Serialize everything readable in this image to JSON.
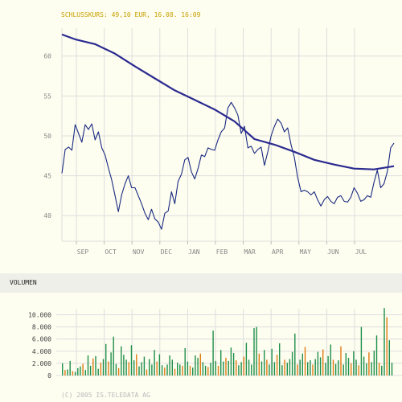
{
  "header": {
    "close_label": "SCHLUSSKURS: 49,10 EUR, 16.08. 16:09"
  },
  "volume_section": {
    "title": "VOLUMEN"
  },
  "footer": {
    "copyright": "(C) 2005 IS.TELEDATA AG"
  },
  "colors": {
    "background": "#fdfdf0",
    "header_text": "#c8a000",
    "grid": "#dedede",
    "axis_text": "#888888",
    "price_line": "#1a2a80",
    "moving_average": "#2a2a90",
    "volume_green": "#1e8f4a",
    "volume_orange": "#e07a10"
  },
  "chart_data": [
    {
      "type": "line",
      "title": "",
      "x_categories": [
        "SEP",
        "OCT",
        "NOV",
        "DEC",
        "JAN",
        "FEB",
        "MAR",
        "APR",
        "MAY",
        "JUN",
        "JUL"
      ],
      "y_ticks": [
        "60",
        "55",
        "50",
        "45",
        "40"
      ],
      "y_tick_values": [
        60,
        55,
        50,
        45,
        40
      ],
      "ylim": [
        36.8,
        63.5
      ],
      "grid": true,
      "series": [
        {
          "kind": "price",
          "points": [
            [
              0,
              45.3
            ],
            [
              0.5,
              48.3
            ],
            [
              1,
              48.6
            ],
            [
              1.5,
              48.2
            ],
            [
              2,
              51.4
            ],
            [
              2.5,
              50.3
            ],
            [
              3,
              49.2
            ],
            [
              3.5,
              51.4
            ],
            [
              4,
              50.8
            ],
            [
              4.5,
              51.5
            ],
            [
              5,
              49.5
            ],
            [
              5.5,
              50.5
            ],
            [
              6,
              48.5
            ],
            [
              6.5,
              47.6
            ],
            [
              7,
              46.0
            ],
            [
              7.5,
              44.5
            ],
            [
              8,
              42.5
            ],
            [
              8.5,
              40.5
            ],
            [
              9,
              42.6
            ],
            [
              9.5,
              44.0
            ],
            [
              10,
              45.0
            ],
            [
              10.5,
              43.5
            ],
            [
              11,
              43.5
            ],
            [
              11.5,
              42.5
            ],
            [
              12,
              41.5
            ],
            [
              12.5,
              40.3
            ],
            [
              13,
              39.5
            ],
            [
              13.5,
              40.8
            ],
            [
              14,
              39.6
            ],
            [
              14.5,
              39.2
            ],
            [
              15,
              38.3
            ],
            [
              15.5,
              40.3
            ],
            [
              16,
              40.6
            ],
            [
              16.5,
              43.0
            ],
            [
              17,
              41.5
            ],
            [
              17.5,
              44.3
            ],
            [
              18,
              45.2
            ],
            [
              18.5,
              47.0
            ],
            [
              19,
              47.3
            ],
            [
              19.5,
              45.5
            ],
            [
              20,
              44.6
            ],
            [
              20.5,
              45.9
            ],
            [
              21,
              47.6
            ],
            [
              21.5,
              47.4
            ],
            [
              22,
              48.5
            ],
            [
              22.5,
              48.3
            ],
            [
              23,
              48.2
            ],
            [
              23.5,
              49.5
            ],
            [
              24,
              50.5
            ],
            [
              24.5,
              51.0
            ],
            [
              25,
              53.5
            ],
            [
              25.5,
              54.2
            ],
            [
              26,
              53.5
            ],
            [
              26.5,
              52.6
            ],
            [
              27,
              50.3
            ],
            [
              27.5,
              51.2
            ],
            [
              28,
              48.5
            ],
            [
              28.5,
              48.7
            ],
            [
              29,
              47.8
            ],
            [
              29.5,
              48.3
            ],
            [
              30,
              48.6
            ],
            [
              30.5,
              46.3
            ],
            [
              31,
              48.0
            ],
            [
              31.5,
              50.0
            ],
            [
              32,
              51.2
            ],
            [
              32.5,
              52.1
            ],
            [
              33,
              51.6
            ],
            [
              33.5,
              50.5
            ],
            [
              34,
              51.0
            ],
            [
              34.5,
              48.9
            ],
            [
              35,
              47.3
            ],
            [
              35.5,
              44.8
            ],
            [
              36,
              43.0
            ],
            [
              36.5,
              43.2
            ],
            [
              37,
              43.0
            ],
            [
              37.5,
              42.6
            ],
            [
              38,
              43.0
            ],
            [
              38.5,
              42.0
            ],
            [
              39,
              41.2
            ],
            [
              39.5,
              42.0
            ],
            [
              40,
              42.4
            ],
            [
              40.5,
              41.8
            ],
            [
              41,
              41.5
            ],
            [
              41.5,
              42.3
            ],
            [
              42,
              42.5
            ],
            [
              42.5,
              41.8
            ],
            [
              43,
              41.7
            ],
            [
              43.5,
              42.3
            ],
            [
              44,
              43.5
            ],
            [
              44.5,
              42.8
            ],
            [
              45,
              41.8
            ],
            [
              45.5,
              42.0
            ],
            [
              46,
              42.5
            ],
            [
              46.5,
              42.3
            ],
            [
              47,
              44.2
            ],
            [
              47.5,
              45.7
            ],
            [
              48,
              43.5
            ],
            [
              48.5,
              44.0
            ],
            [
              49,
              45.5
            ],
            [
              49.5,
              48.5
            ],
            [
              50,
              49.1
            ]
          ]
        },
        {
          "kind": "moving_average",
          "points": [
            [
              0,
              62.7
            ],
            [
              2,
              62.1
            ],
            [
              5,
              61.5
            ],
            [
              8,
              60.3
            ],
            [
              11,
              58.7
            ],
            [
              14,
              57.2
            ],
            [
              17,
              55.7
            ],
            [
              20,
              54.5
            ],
            [
              23,
              53.3
            ],
            [
              26,
              51.8
            ],
            [
              29,
              49.6
            ],
            [
              32,
              48.9
            ],
            [
              35,
              48.0
            ],
            [
              38,
              47.0
            ],
            [
              41,
              46.4
            ],
            [
              44,
              45.9
            ],
            [
              47,
              45.8
            ],
            [
              50,
              46.2
            ]
          ]
        }
      ]
    },
    {
      "type": "bar",
      "title": "VOLUMEN",
      "y_ticks": [
        "10.000",
        "8.000",
        "6.000",
        "4.000",
        "2.000",
        "0"
      ],
      "y_tick_values": [
        10000,
        8000,
        6000,
        4000,
        2000,
        0
      ],
      "ylim": [
        0,
        11000
      ],
      "grid": true,
      "series": [
        {
          "name": "",
          "values": [
            2000,
            900,
            1000,
            2400,
            700,
            600,
            1200,
            1500,
            1900,
            900,
            3300,
            1600,
            2800,
            3200,
            1100,
            2100,
            2700,
            5200,
            2300,
            3800,
            6400,
            1900,
            1200,
            4800,
            3400,
            2600,
            2200,
            5000,
            2500,
            3500,
            1500,
            2200,
            3100,
            1000,
            2700,
            1800,
            4200,
            2300,
            3500,
            1700,
            1300,
            1800,
            3300,
            2600,
            1100,
            2100,
            1800,
            1600,
            4500,
            2300,
            1600,
            1300,
            3300,
            2900,
            3600,
            2200,
            1600,
            1400,
            2100,
            7400,
            2400,
            1600,
            4200,
            2300,
            2900,
            2400,
            4600,
            3700,
            2500,
            1700,
            2200,
            3100,
            5400,
            2600,
            1800,
            7800,
            8000,
            3600,
            2300,
            4200,
            2600,
            1800,
            4400,
            2200,
            3400,
            5300,
            1700,
            2600,
            2100,
            2700,
            3900,
            6900,
            1800,
            2600,
            3600,
            4700,
            2200,
            2500,
            1800,
            2700,
            3900,
            3000,
            4300,
            2100,
            3200,
            5100,
            2600,
            1900,
            2500,
            4800,
            1800,
            3700,
            2900,
            2000,
            4000,
            2600,
            1700,
            8000,
            3100,
            2000,
            3800,
            2200,
            4100,
            6600,
            2100,
            1600,
            11100,
            9600,
            5800,
            2100
          ],
          "colors": [
            "g",
            "o",
            "g",
            "g",
            "o",
            "g",
            "g",
            "g",
            "o",
            "g",
            "g",
            "g",
            "o",
            "g",
            "g",
            "o",
            "g",
            "g",
            "o",
            "g",
            "g",
            "g",
            "o",
            "g",
            "g",
            "g",
            "o",
            "g",
            "g",
            "o",
            "g",
            "g",
            "g",
            "o",
            "g",
            "g",
            "g",
            "o",
            "g",
            "g",
            "o",
            "g",
            "g",
            "g",
            "o",
            "g",
            "g",
            "o",
            "g",
            "g",
            "o",
            "g",
            "g",
            "g",
            "o",
            "g",
            "g",
            "o",
            "g",
            "g",
            "g",
            "o",
            "g",
            "g",
            "o",
            "g",
            "g",
            "g",
            "o",
            "g",
            "g",
            "o",
            "g",
            "g",
            "g",
            "g",
            "g",
            "o",
            "g",
            "g",
            "o",
            "g",
            "g",
            "g",
            "o",
            "g",
            "g",
            "o",
            "g",
            "g",
            "g",
            "g",
            "o",
            "g",
            "g",
            "o",
            "g",
            "g",
            "o",
            "g",
            "g",
            "g",
            "o",
            "g",
            "g",
            "g",
            "o",
            "g",
            "g",
            "o",
            "g",
            "g",
            "g",
            "o",
            "g",
            "g",
            "o",
            "g",
            "g",
            "g",
            "o",
            "g",
            "g",
            "g",
            "o",
            "g",
            "g",
            "o",
            "g",
            "g"
          ]
        }
      ]
    }
  ]
}
